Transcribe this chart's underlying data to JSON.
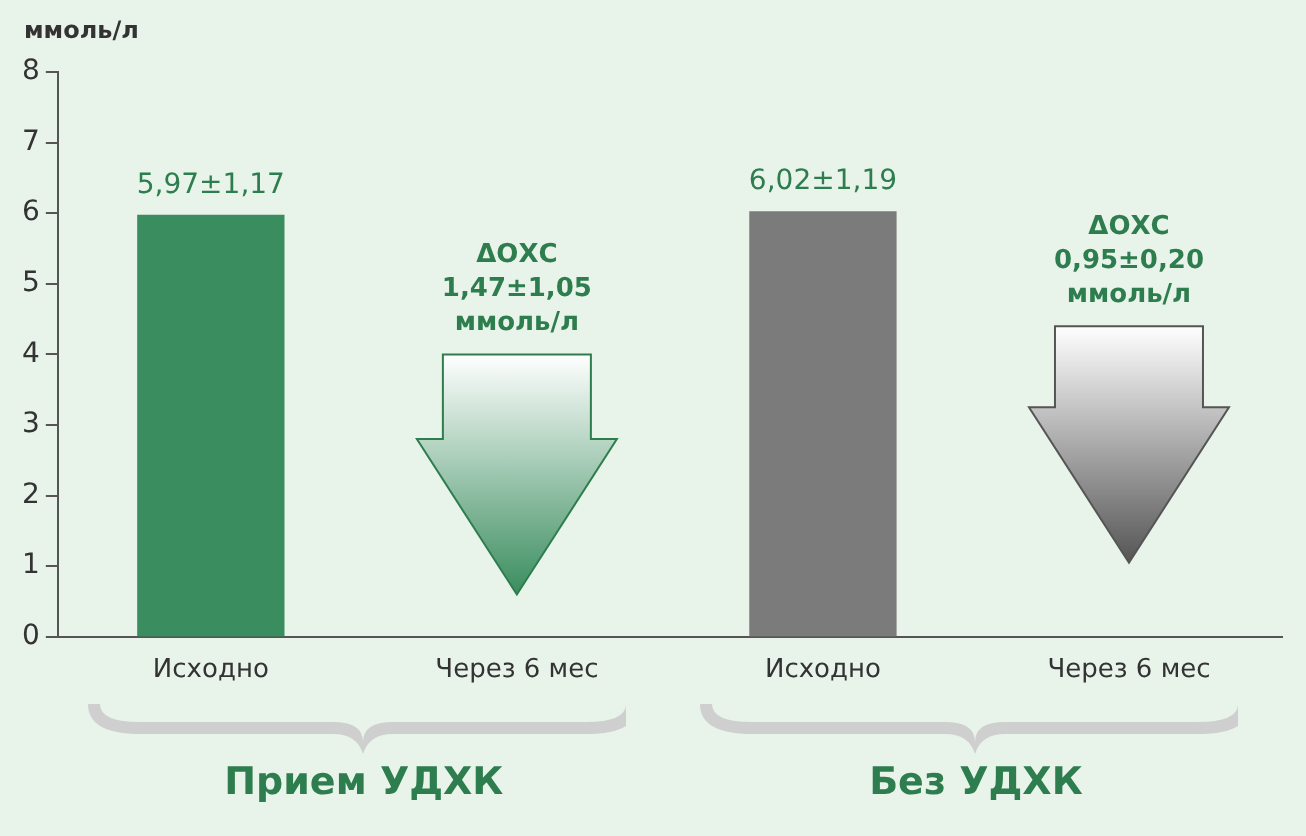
{
  "chart_data": {
    "type": "bar",
    "ylabel": "ммоль/л",
    "categories": [
      "Исходно",
      "Через 6 мес",
      "Исходно",
      "Через 6 мес"
    ],
    "values": [
      5.97,
      null,
      6.02,
      null
    ],
    "colors": [
      "#3a8d5e",
      "#2e8b57",
      "#7b7b7b",
      "#777777"
    ],
    "value_labels": [
      "5,97±1,17",
      null,
      "6,02±1,19",
      null
    ],
    "ylim": [
      0,
      8
    ],
    "yticks": [
      0,
      1,
      2,
      3,
      4,
      5,
      6,
      7,
      8
    ],
    "grid": false,
    "legend": false,
    "annotations": [
      "ΔОХС\n1,47±1,05\nммоль/л",
      "ΔОХС\n0,95±0,20\nммоль/л",
      "Прием УДХК",
      "Без УДХК"
    ]
  }
}
